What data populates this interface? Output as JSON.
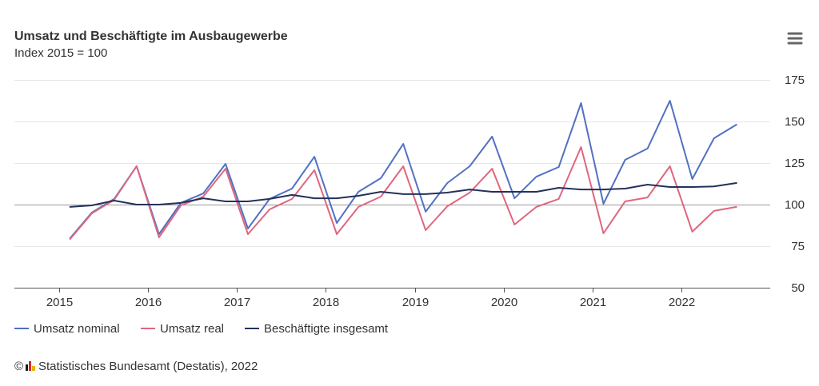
{
  "chart_menu": {
    "icon": "hamburger-icon"
  },
  "credits": {
    "symbol": "©",
    "logo_icon": "destatis-logo",
    "text": "Statistisches Bundesamt (Destatis), 2022"
  },
  "chart_data": {
    "type": "line",
    "title": "Umsatz und Beschäftigte im Ausbaugewerbe",
    "subtitle": "Index 2015 = 100",
    "x": [
      "2015-02-15",
      "2015-05-15",
      "2015-08-15",
      "2015-11-15",
      "2016-02-15",
      "2016-05-15",
      "2016-08-15",
      "2016-11-15",
      "2017-02-15",
      "2017-05-15",
      "2017-08-15",
      "2017-11-15",
      "2018-02-15",
      "2018-05-15",
      "2018-08-15",
      "2018-11-15",
      "2019-02-15",
      "2019-05-15",
      "2019-08-15",
      "2019-11-15",
      "2020-02-15",
      "2020-05-15",
      "2020-08-15",
      "2020-11-15",
      "2021-02-15",
      "2021-05-15",
      "2021-08-15",
      "2021-11-15",
      "2022-02-15",
      "2022-05-15",
      "2022-08-15"
    ],
    "x_tick_labels": [
      "2015",
      "2016",
      "2017",
      "2018",
      "2019",
      "2020",
      "2021",
      "2022"
    ],
    "xlim": [
      "2014-07-01",
      "2023-01-01"
    ],
    "y_ticks": [
      50,
      75,
      100,
      125,
      150,
      175
    ],
    "y_tick_labels": [
      "50",
      "75",
      "100",
      "125",
      "150",
      "175"
    ],
    "ylim": [
      50,
      175
    ],
    "y_axis_side": "right",
    "grid": true,
    "reference_line": 100,
    "legend_position": "bottom-left",
    "series": [
      {
        "name": "Umsatz nominal",
        "color": "#5271c2",
        "values": [
          79.8,
          95.2,
          103.4,
          123.1,
          82.2,
          101.0,
          106.7,
          124.5,
          85.6,
          103.4,
          109.6,
          128.8,
          88.9,
          107.7,
          115.9,
          136.5,
          95.7,
          113.0,
          123.1,
          140.9,
          103.8,
          116.8,
          122.6,
          161.1,
          100.5,
          126.9,
          133.7,
          162.5,
          115.4,
          139.9,
          148.1
        ]
      },
      {
        "name": "Umsatz real",
        "color": "#e0667e",
        "values": [
          79.3,
          94.7,
          102.9,
          123.1,
          80.3,
          99.5,
          104.8,
          121.6,
          82.2,
          97.1,
          103.4,
          120.7,
          82.2,
          98.6,
          104.8,
          123.1,
          84.6,
          99.0,
          107.2,
          121.6,
          88.0,
          98.6,
          103.4,
          134.6,
          82.7,
          101.9,
          104.3,
          123.1,
          83.7,
          96.2,
          98.6
        ]
      },
      {
        "name": "Beschäftigte insgesamt",
        "color": "#22325a",
        "values": [
          98.6,
          99.5,
          102.4,
          100.0,
          100.0,
          101.0,
          103.8,
          101.9,
          101.9,
          103.4,
          105.8,
          103.8,
          103.8,
          105.3,
          107.7,
          106.3,
          106.3,
          107.2,
          109.1,
          107.7,
          107.7,
          107.7,
          110.1,
          109.1,
          109.1,
          109.6,
          112.0,
          110.6,
          110.6,
          110.9,
          113.0
        ]
      }
    ]
  }
}
